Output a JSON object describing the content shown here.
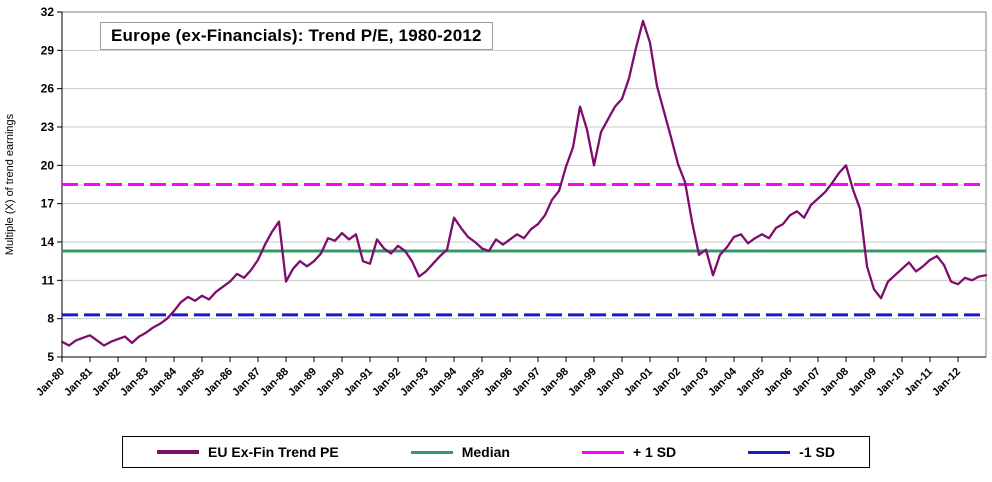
{
  "chart_data": {
    "type": "line",
    "title": "Europe (ex-Financials): Trend P/E, 1980-2012",
    "xlabel": "",
    "ylabel": "Multiple (X) of trend earnings",
    "ylim": [
      5,
      32
    ],
    "y_ticks": [
      5,
      8,
      11,
      14,
      17,
      20,
      23,
      26,
      29,
      32
    ],
    "grid": "horizontal",
    "legend_position": "bottom",
    "x_domain_months": [
      0,
      396
    ],
    "x_tick_labels": [
      "Jan-80",
      "Jan-81",
      "Jan-82",
      "Jan-83",
      "Jan-84",
      "Jan-85",
      "Jan-86",
      "Jan-87",
      "Jan-88",
      "Jan-89",
      "Jan-90",
      "Jan-91",
      "Jan-92",
      "Jan-93",
      "Jan-94",
      "Jan-95",
      "Jan-96",
      "Jan-97",
      "Jan-98",
      "Jan-99",
      "Jan-00",
      "Jan-01",
      "Jan-02",
      "Jan-03",
      "Jan-04",
      "Jan-05",
      "Jan-06",
      "Jan-07",
      "Jan-08",
      "Jan-09",
      "Jan-10",
      "Jan-11",
      "Jan-12"
    ],
    "series": [
      {
        "name": "EU Ex-Fin Trend PE",
        "color": "#7D0E6E",
        "start": "Jan-80",
        "step_months": 3,
        "values": [
          6.2,
          5.9,
          6.3,
          6.5,
          6.7,
          6.3,
          5.9,
          6.2,
          6.4,
          6.6,
          6.1,
          6.6,
          6.9,
          7.3,
          7.6,
          8.0,
          8.6,
          9.3,
          9.7,
          9.4,
          9.8,
          9.5,
          10.1,
          10.5,
          10.9,
          11.5,
          11.2,
          11.8,
          12.6,
          13.8,
          14.8,
          15.6,
          10.9,
          11.9,
          12.5,
          12.1,
          12.5,
          13.1,
          14.3,
          14.1,
          14.7,
          14.2,
          14.6,
          12.5,
          12.3,
          14.2,
          13.5,
          13.1,
          13.7,
          13.3,
          12.5,
          11.3,
          11.7,
          12.3,
          12.9,
          13.4,
          15.9,
          15.1,
          14.4,
          14.0,
          13.5,
          13.3,
          14.2,
          13.8,
          14.2,
          14.6,
          14.3,
          15.0,
          15.4,
          16.1,
          17.3,
          18.0,
          19.9,
          21.4,
          24.6,
          22.8,
          20.0,
          22.6,
          23.6,
          24.6,
          25.2,
          26.8,
          29.2,
          31.3,
          29.6,
          26.2,
          24.2,
          22.2,
          20.1,
          18.7,
          15.6,
          13.0,
          13.4,
          11.4,
          13.0,
          13.6,
          14.4,
          14.6,
          13.9,
          14.3,
          14.6,
          14.3,
          15.1,
          15.4,
          16.1,
          16.4,
          15.9,
          16.9,
          17.4,
          17.9,
          18.6,
          19.4,
          20.0,
          18.1,
          16.6,
          12.1,
          10.3,
          9.6,
          10.9,
          11.4,
          11.9,
          12.4,
          11.7,
          12.1,
          12.6,
          12.9,
          12.2,
          10.9,
          10.7,
          11.2,
          11.0,
          11.3,
          11.4
        ]
      }
    ],
    "reference_lines": [
      {
        "name": "Median",
        "value": 13.3,
        "color": "#339966",
        "style": "solid"
      },
      {
        "name": "+ 1 SD",
        "value": 18.5,
        "color": "#FF00FF",
        "style": "dashed"
      },
      {
        "name": "-1 SD",
        "value": 8.3,
        "color": "#1A1ACC",
        "style": "dashed"
      }
    ]
  }
}
